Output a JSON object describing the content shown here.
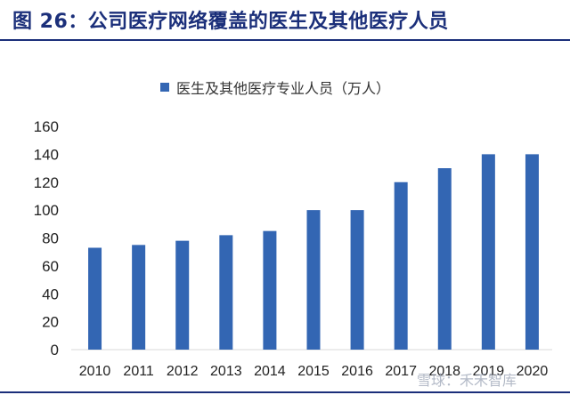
{
  "header": {
    "title": "图 26：公司医疗网络覆盖的医生及其他医疗人员"
  },
  "watermark": {
    "text": "雪球：禾禾智库"
  },
  "colors": {
    "bar": "#3366b3",
    "title": "#1b2f7a",
    "axis_text": "#222222"
  },
  "chart_data": {
    "type": "bar",
    "title": "",
    "xlabel": "",
    "ylabel": "",
    "categories": [
      "2010",
      "2011",
      "2012",
      "2013",
      "2014",
      "2015",
      "2016",
      "2017",
      "2018",
      "2019",
      "2020"
    ],
    "series": [
      {
        "name": "医生及其他医疗专业人员（万人）",
        "values": [
          73,
          75,
          78,
          82,
          85,
          100,
          100,
          120,
          130,
          140,
          140
        ]
      }
    ],
    "ylim": [
      0,
      160
    ],
    "yticks": [
      0,
      20,
      40,
      60,
      80,
      100,
      120,
      140,
      160
    ],
    "grid": false,
    "legend_position": "top-center"
  }
}
